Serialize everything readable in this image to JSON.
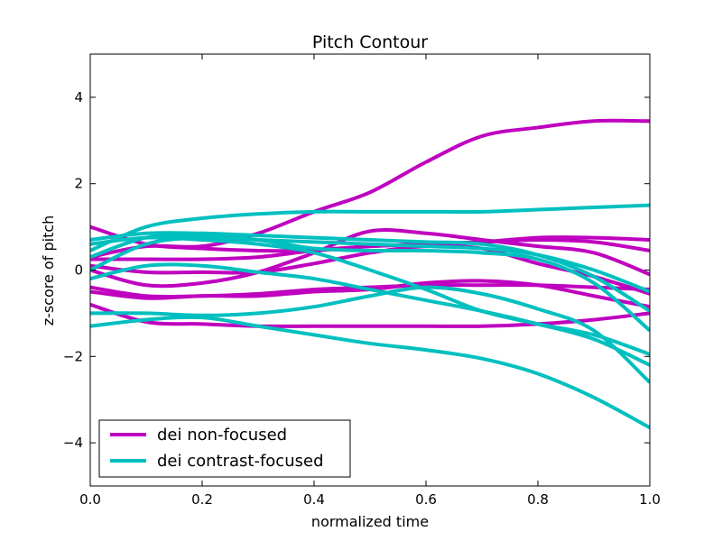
{
  "chart_data": {
    "type": "line",
    "title": "Pitch Contour",
    "xlabel": "normalized time",
    "ylabel": "z-score of pitch",
    "xlim": [
      0,
      1
    ],
    "ylim": [
      -5,
      5
    ],
    "xticks": [
      0,
      0.2,
      0.4,
      0.6,
      0.8,
      1
    ],
    "xtick_labels": [
      "0.0",
      "0.2",
      "0.4",
      "0.6",
      "0.8",
      "1.0"
    ],
    "yticks": [
      -4,
      -2,
      0,
      2,
      4
    ],
    "ytick_labels": [
      "−4",
      "−2",
      "0",
      "2",
      "4"
    ],
    "grid": false,
    "legend_position": "bottom-left",
    "colors": {
      "non_focused": "#bf00bf",
      "contrast_focused": "#00bfbf"
    },
    "legend": [
      {
        "label": "dei non-focused",
        "group": "non_focused"
      },
      {
        "label": "dei contrast-focused",
        "group": "contrast_focused"
      }
    ],
    "x": [
      0,
      0.1,
      0.2,
      0.3,
      0.4,
      0.5,
      0.6,
      0.7,
      0.8,
      0.9,
      1.0
    ],
    "series": [
      {
        "group": "non_focused",
        "values": [
          0.3,
          0.55,
          0.55,
          0.85,
          1.35,
          1.8,
          2.5,
          3.1,
          3.3,
          3.45,
          3.45
        ]
      },
      {
        "group": "non_focused",
        "values": [
          1.0,
          0.6,
          0.5,
          0.45,
          0.45,
          0.55,
          0.6,
          0.65,
          0.75,
          0.75,
          0.7
        ]
      },
      {
        "group": "non_focused",
        "values": [
          -0.4,
          -0.6,
          -0.6,
          -0.55,
          -0.45,
          -0.4,
          -0.35,
          -0.35,
          -0.35,
          -0.4,
          -0.45
        ]
      },
      {
        "group": "non_focused",
        "values": [
          0.0,
          -0.35,
          -0.3,
          -0.05,
          0.4,
          0.9,
          0.85,
          0.7,
          0.55,
          0.4,
          -0.1
        ]
      },
      {
        "group": "non_focused",
        "values": [
          0.25,
          0.25,
          0.25,
          0.3,
          0.45,
          0.55,
          0.6,
          0.65,
          0.7,
          0.65,
          0.45
        ]
      },
      {
        "group": "non_focused",
        "values": [
          -0.5,
          -0.65,
          -0.6,
          -0.6,
          -0.5,
          -0.45,
          -0.3,
          -0.25,
          -0.35,
          -0.6,
          -0.85
        ]
      },
      {
        "group": "non_focused",
        "values": [
          -0.8,
          -1.2,
          -1.25,
          -1.3,
          -1.3,
          -1.3,
          -1.3,
          -1.3,
          -1.25,
          -1.15,
          -1.0
        ]
      },
      {
        "group": "non_focused",
        "values": [
          0.1,
          -0.05,
          -0.05,
          -0.05,
          0.15,
          0.4,
          0.55,
          0.5,
          0.15,
          -0.15,
          -0.55
        ]
      },
      {
        "group": "contrast_focused",
        "values": [
          0.45,
          1.0,
          1.2,
          1.3,
          1.35,
          1.35,
          1.35,
          1.35,
          1.4,
          1.45,
          1.5
        ]
      },
      {
        "group": "contrast_focused",
        "values": [
          0.7,
          0.85,
          0.85,
          0.8,
          0.75,
          0.7,
          0.65,
          0.6,
          0.35,
          -0.15,
          -0.95
        ]
      },
      {
        "group": "contrast_focused",
        "values": [
          0.0,
          0.6,
          0.75,
          0.7,
          0.65,
          0.6,
          0.55,
          0.5,
          0.35,
          0.0,
          -0.5
        ]
      },
      {
        "group": "contrast_focused",
        "values": [
          0.3,
          0.75,
          0.8,
          0.7,
          0.5,
          0.45,
          0.45,
          0.4,
          0.25,
          -0.3,
          -1.4
        ]
      },
      {
        "group": "contrast_focused",
        "values": [
          0.6,
          0.75,
          0.7,
          0.6,
          0.4,
          0.0,
          -0.45,
          -0.95,
          -1.25,
          -1.5,
          -1.95
        ]
      },
      {
        "group": "contrast_focused",
        "values": [
          -0.2,
          0.1,
          0.1,
          -0.05,
          -0.2,
          -0.45,
          -0.7,
          -0.95,
          -1.25,
          -1.6,
          -2.2
        ]
      },
      {
        "group": "contrast_focused",
        "values": [
          -1.3,
          -1.15,
          -1.1,
          -1.3,
          -1.5,
          -1.7,
          -1.85,
          -2.05,
          -2.4,
          -2.95,
          -3.65
        ]
      },
      {
        "group": "contrast_focused",
        "values": [
          -1.0,
          -1.0,
          -1.05,
          -1.0,
          -0.85,
          -0.6,
          -0.4,
          -0.55,
          -0.9,
          -1.4,
          -2.6
        ]
      }
    ]
  }
}
